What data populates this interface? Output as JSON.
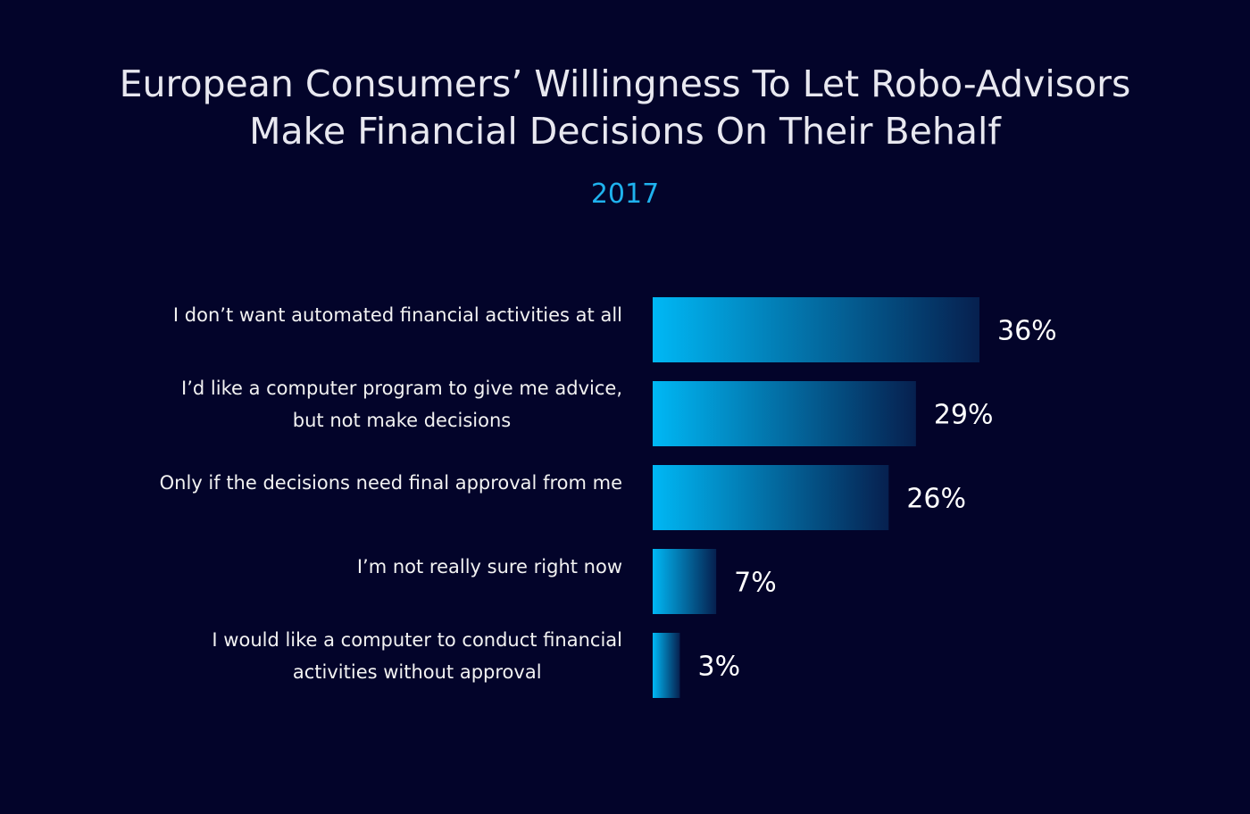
{
  "chart_data": {
    "type": "bar",
    "orientation": "horizontal",
    "title": "European Consumers’  Willingness To Let Robo-Advisors Make Financial Decisions On Their Behalf",
    "title_lines": [
      "European Consumers’  Willingness To Let Robo-Advisors",
      "Make Financial Decisions On Their Behalf"
    ],
    "subtitle": "2017",
    "categories": [
      [
        "I don’t want automated financial activities at all"
      ],
      [
        "I’d like a computer program to give me advice,",
        "but not make decisions"
      ],
      [
        "Only if the decisions need final approval from me"
      ],
      [
        "I’m not really sure right now"
      ],
      [
        "I would like a computer to conduct financial",
        "activities without approval"
      ]
    ],
    "values": [
      36,
      29,
      26,
      7,
      3
    ],
    "value_labels": [
      "36%",
      "29%",
      "26%",
      "7%",
      "3%"
    ],
    "unit": "%",
    "xlim": [
      0,
      36
    ],
    "grid": false,
    "legend": "none",
    "colors": {
      "background": "#03042a",
      "bar_start": "#00b8f5",
      "bar_end": "#06204f",
      "title": "#e8e8f0",
      "subtitle": "#1fb2ee",
      "label": "#f2f2f2"
    }
  }
}
